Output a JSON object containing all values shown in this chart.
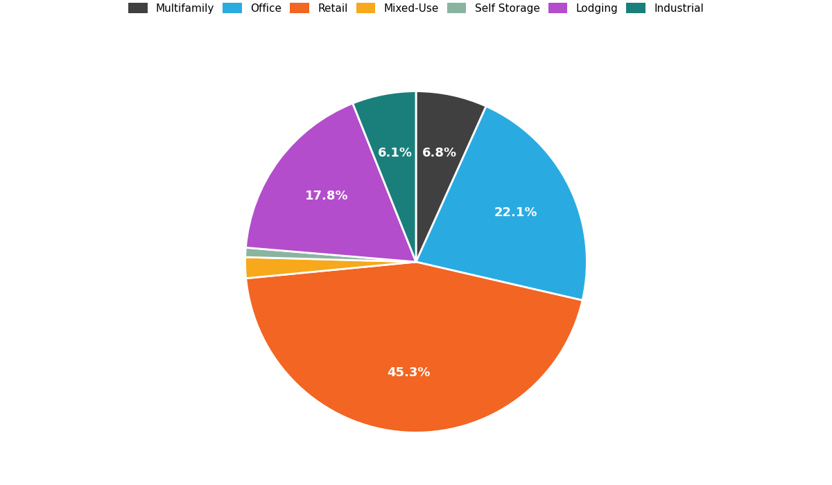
{
  "labels": [
    "Multifamily",
    "Office",
    "Retail",
    "Mixed-Use",
    "Self Storage",
    "Lodging",
    "Industrial"
  ],
  "values": [
    6.8,
    22.1,
    45.3,
    2.0,
    0.9,
    17.8,
    6.1
  ],
  "colors": [
    "#404040",
    "#29abe2",
    "#f26522",
    "#f7a81b",
    "#8ab4a0",
    "#b44dcc",
    "#1a7f7a"
  ],
  "pct_labels": [
    "6.8%",
    "22.1%",
    "45.3%",
    "",
    "",
    "17.8%",
    "6.1%"
  ],
  "startangle": 90,
  "background_color": "#ffffff",
  "title_fontsize": 13,
  "legend_fontsize": 11
}
